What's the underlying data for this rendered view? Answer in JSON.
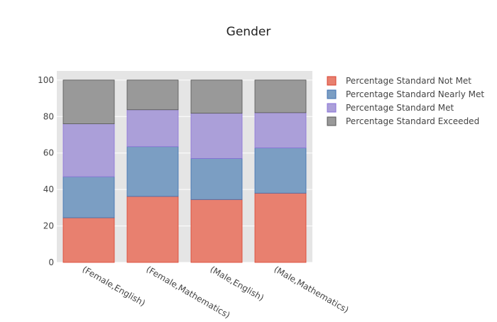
{
  "chart_data": {
    "type": "bar",
    "stacked": true,
    "title": "Gender",
    "xlabel": "",
    "ylabel": "",
    "ylim": [
      0,
      105
    ],
    "yticks": [
      0,
      20,
      40,
      60,
      80,
      100
    ],
    "grid": true,
    "legend_position": "right",
    "categories": [
      "(Female,English)",
      "(Female,Mathematics)",
      "(Male,English)",
      "(Male,Mathematics)"
    ],
    "series": [
      {
        "name": "Percentage Standard Not Met",
        "color": "#e8806f",
        "stroke": "#d9412f",
        "values": [
          24.5,
          36.2,
          34.5,
          38.0
        ]
      },
      {
        "name": "Percentage Standard Nearly Met",
        "color": "#7b9ec3",
        "stroke": "#3f6fb0",
        "values": [
          22.5,
          27.3,
          22.5,
          24.8
        ]
      },
      {
        "name": "Percentage Standard Met",
        "color": "#ab9fd9",
        "stroke": "#8a72d8",
        "values": [
          29.0,
          20.2,
          24.8,
          19.3
        ]
      },
      {
        "name": "Percentage Standard Exceeded",
        "color": "#999999",
        "stroke": "#555555",
        "values": [
          24.0,
          16.3,
          18.2,
          17.9
        ]
      }
    ]
  }
}
